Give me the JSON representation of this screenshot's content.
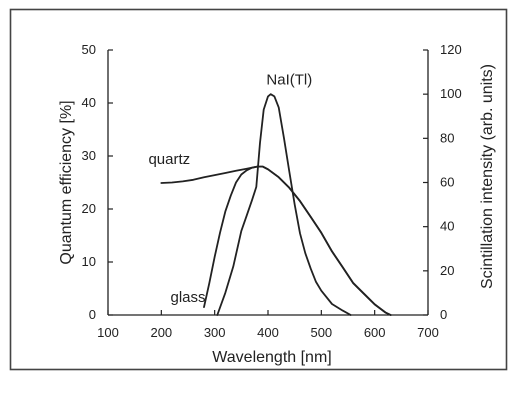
{
  "colors": {
    "line": "#222222",
    "border": "#444444",
    "background": "#ffffff"
  },
  "chart_data": {
    "type": "line",
    "xlabel": "Wavelength [nm]",
    "ylabel": "Quantum efficiency [%]",
    "y2label": "Scintillation intensity (arb. units)",
    "xlim": [
      100,
      700
    ],
    "ylim": [
      0,
      50
    ],
    "y2lim": [
      0,
      120
    ],
    "x_ticks": [
      100,
      200,
      300,
      400,
      500,
      600,
      700
    ],
    "y_ticks": [
      0,
      10,
      20,
      30,
      40,
      50
    ],
    "y2_ticks": [
      0,
      20,
      40,
      60,
      80,
      100,
      120
    ],
    "grid": false,
    "series": [
      {
        "name": "glass",
        "axis": "left",
        "x": [
          280,
          290,
          300,
          310,
          320,
          330,
          340,
          350,
          360,
          370,
          380,
          390,
          400,
          420,
          440,
          460,
          480,
          500,
          520,
          540,
          560,
          580,
          600,
          620,
          630
        ],
        "y": [
          1.5,
          6,
          11,
          15.5,
          19.5,
          22.5,
          25,
          26.5,
          27.3,
          27.8,
          28,
          28,
          27.5,
          26,
          24,
          21.5,
          18.5,
          15.5,
          12,
          9,
          6,
          4,
          2,
          0.5,
          0
        ]
      },
      {
        "name": "quartz",
        "axis": "left",
        "x": [
          200,
          220,
          240,
          260,
          280,
          300,
          320,
          340,
          360,
          380,
          390,
          400,
          420,
          440,
          460,
          480,
          500,
          520,
          540,
          560,
          580,
          600,
          620,
          630
        ],
        "y": [
          24.9,
          25,
          25.2,
          25.5,
          26,
          26.4,
          26.8,
          27.2,
          27.6,
          28,
          28,
          27.5,
          26,
          24,
          21.5,
          18.5,
          15.5,
          12,
          9,
          6,
          4,
          2,
          0.5,
          0
        ]
      },
      {
        "name": "NaI(Tl)",
        "axis": "right",
        "x": [
          305,
          320,
          335,
          350,
          360,
          370,
          378,
          385,
          392,
          400,
          405,
          412,
          420,
          430,
          440,
          450,
          460,
          470,
          480,
          490,
          500,
          520,
          540,
          555
        ],
        "y": [
          0,
          10,
          22,
          38,
          45,
          52,
          58,
          78,
          93,
          99,
          100,
          99,
          94,
          80,
          65,
          50,
          37,
          28,
          21,
          15,
          11,
          5,
          2,
          0
        ]
      }
    ],
    "annotations": [
      {
        "text": "quartz",
        "x": 215,
        "y": 28.5
      },
      {
        "text": "glass",
        "x": 250,
        "y": 2.5
      },
      {
        "text": "NaI(Tl)",
        "x": 440,
        "y": 43.5
      }
    ]
  }
}
